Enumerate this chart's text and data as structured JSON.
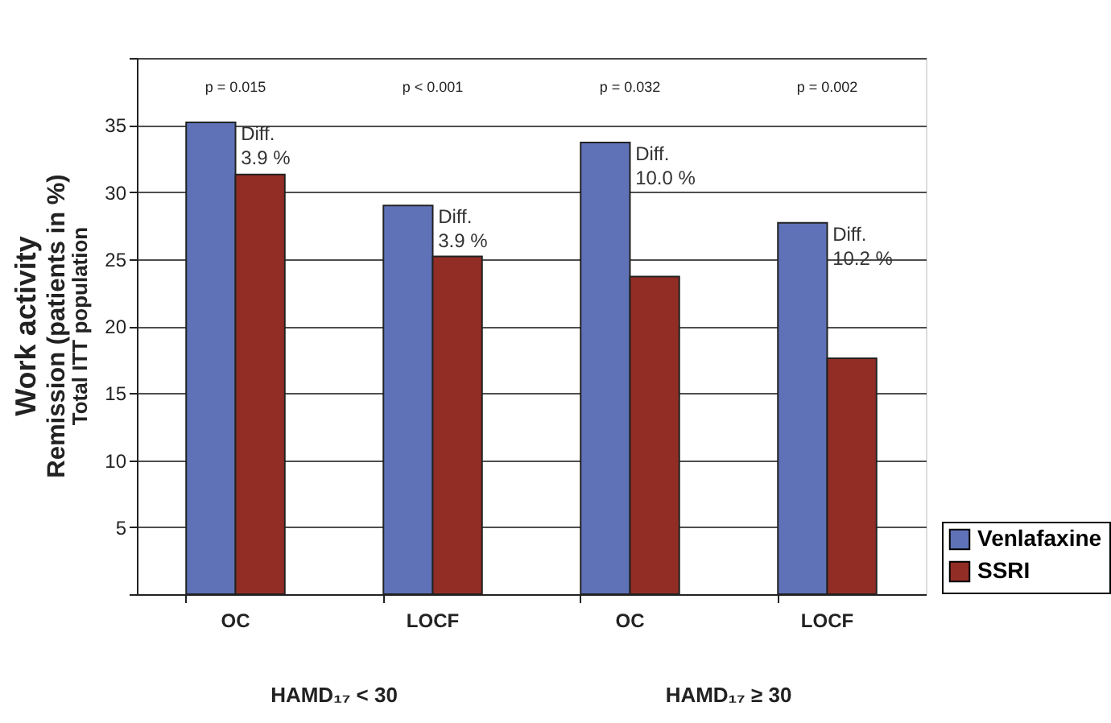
{
  "chart_data": {
    "type": "bar",
    "ylabel": "Work activity\nRemission (patients in %)\nTotal ITT population",
    "categories": [
      "OC",
      "LOCF",
      "OC",
      "LOCF"
    ],
    "series": [
      {
        "name": "Venlafaxine",
        "color": "#5f72b8",
        "values": [
          35.2,
          29.0,
          33.7,
          27.7
        ]
      },
      {
        "name": "SSRI",
        "color": "#922d25",
        "values": [
          31.3,
          25.2,
          23.7,
          17.6
        ]
      }
    ],
    "ylim": [
      0,
      40
    ],
    "yticks": [
      {
        "value": 0,
        "label": null
      },
      5,
      10,
      15,
      20,
      25,
      30,
      35,
      {
        "value": 40,
        "label": null
      }
    ],
    "grid": "y",
    "legend": "bottom right",
    "annotations": [
      "p = 0.015",
      "p < 0.001",
      "p = 0.032",
      "p = 0.002",
      "Diff.\n3.9 %",
      "Diff.\n3.9 %",
      "Diff.\n10.0 %",
      "Diff.\n10.2 %",
      "HAMD₁₇ < 30",
      "HAMD₁₇ ≥ 30"
    ]
  }
}
